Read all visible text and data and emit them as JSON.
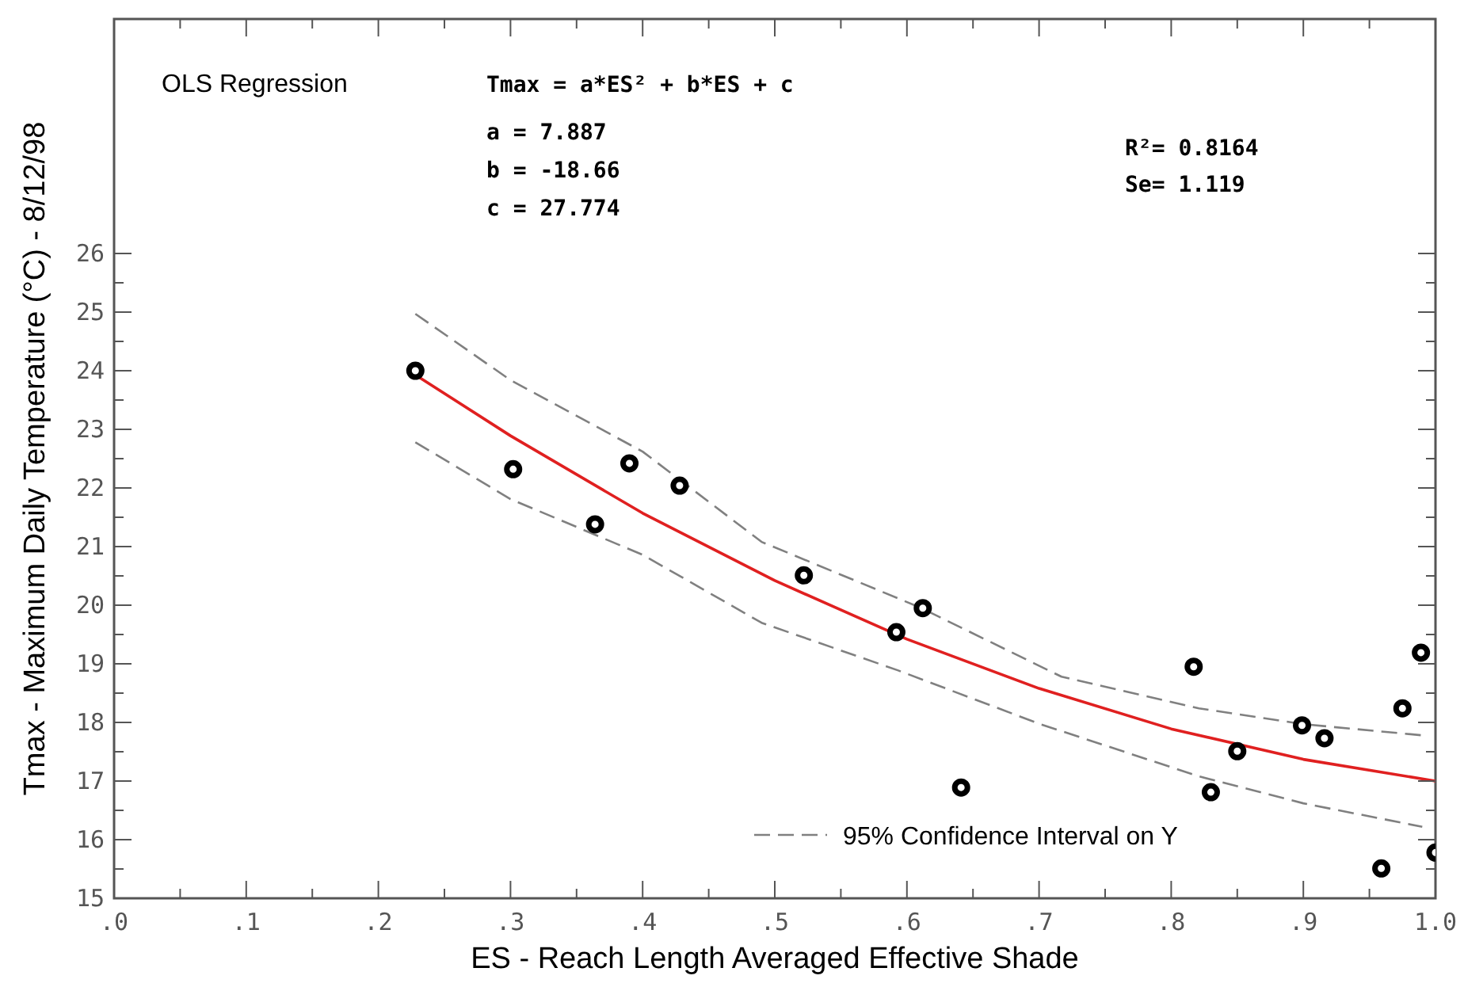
{
  "chart_data": {
    "type": "scatter",
    "xlabel": "ES - Reach Length Averaged Effective Shade",
    "ylabel": "Tmax - Maximum Daily Temperature (°C) - 8/12/98",
    "xlim": [
      0,
      1
    ],
    "ylim": [
      15,
      30
    ],
    "xticks": [
      {
        "value": 0,
        "label": ".0"
      },
      {
        "value": 0.05,
        "label": null
      },
      {
        "value": 0.1,
        "label": ".1"
      },
      {
        "value": 0.15,
        "label": null
      },
      {
        "value": 0.2,
        "label": ".2"
      },
      {
        "value": 0.25,
        "label": null
      },
      {
        "value": 0.3,
        "label": ".3"
      },
      {
        "value": 0.35,
        "label": null
      },
      {
        "value": 0.4,
        "label": ".4"
      },
      {
        "value": 0.45,
        "label": null
      },
      {
        "value": 0.5,
        "label": ".5"
      },
      {
        "value": 0.55,
        "label": null
      },
      {
        "value": 0.6,
        "label": ".6"
      },
      {
        "value": 0.65,
        "label": null
      },
      {
        "value": 0.7,
        "label": ".7"
      },
      {
        "value": 0.75,
        "label": null
      },
      {
        "value": 0.8,
        "label": ".8"
      },
      {
        "value": 0.85,
        "label": null
      },
      {
        "value": 0.9,
        "label": ".9"
      },
      {
        "value": 0.95,
        "label": null
      },
      {
        "value": 1,
        "label": "1.0"
      }
    ],
    "yticks": [
      15,
      {
        "value": 15.5,
        "label": null
      },
      16,
      {
        "value": 16.5,
        "label": null
      },
      17,
      {
        "value": 17.5,
        "label": null
      },
      18,
      {
        "value": 18.5,
        "label": null
      },
      19,
      {
        "value": 19.5,
        "label": null
      },
      20,
      {
        "value": 20.5,
        "label": null
      },
      21,
      {
        "value": 21.5,
        "label": null
      },
      22,
      {
        "value": 22.5,
        "label": null
      },
      23,
      {
        "value": 23.5,
        "label": null
      },
      24,
      {
        "value": 24.5,
        "label": null
      },
      25,
      {
        "value": 25.5,
        "label": null
      },
      26
    ],
    "legend": "bottom right",
    "grid": false,
    "annotations": [
      "OLS Regression",
      "Tmax = a*ES² + b*ES + c",
      "a = 7.887",
      "b = -18.66",
      "c = 27.774",
      "R²= 0.8164",
      "Se= 1.119"
    ],
    "series": [
      {
        "color": "#000000",
        "marker": "circle",
        "x": [
          0.228,
          0.302,
          0.364,
          0.39,
          0.428,
          0.522,
          0.592,
          0.612,
          0.641,
          0.817,
          0.83,
          0.85,
          0.899,
          0.916,
          0.959,
          0.975,
          0.989,
          1.0
        ],
        "values": [
          24.0,
          22.32,
          21.38,
          22.42,
          22.04,
          20.51,
          19.54,
          19.95,
          16.89,
          18.95,
          16.81,
          17.51,
          17.95,
          17.73,
          15.51,
          18.24,
          19.19,
          15.78
        ]
      },
      {
        "type": "line",
        "color": "#e02020",
        "line_style": "solid",
        "marker": "none",
        "x": [
          0.228,
          0.3,
          0.4,
          0.5,
          0.6,
          0.7,
          0.8,
          0.9,
          1.0
        ],
        "values": [
          23.93,
          22.89,
          21.57,
          20.42,
          19.42,
          18.58,
          17.89,
          17.37,
          17.0
        ]
      },
      {
        "type": "line",
        "name": "95% Confidence Interval on Y",
        "color": "#808080",
        "line_style": "dashed",
        "marker": "none",
        "x": [
          0.228,
          0.3,
          0.4,
          0.49,
          0.609,
          0.717,
          0.821,
          0.9,
          0.99
        ],
        "values": [
          24.97,
          23.84,
          22.62,
          21.08,
          19.97,
          18.78,
          18.24,
          17.97,
          17.78
        ]
      },
      {
        "type": "line",
        "color": "#808080",
        "line_style": "dashed",
        "marker": "none",
        "x": [
          0.228,
          0.3,
          0.4,
          0.49,
          0.593,
          0.701,
          0.821,
          0.9,
          0.99
        ],
        "values": [
          22.78,
          21.81,
          20.86,
          19.7,
          18.89,
          17.97,
          17.08,
          16.62,
          16.22
        ]
      }
    ]
  }
}
